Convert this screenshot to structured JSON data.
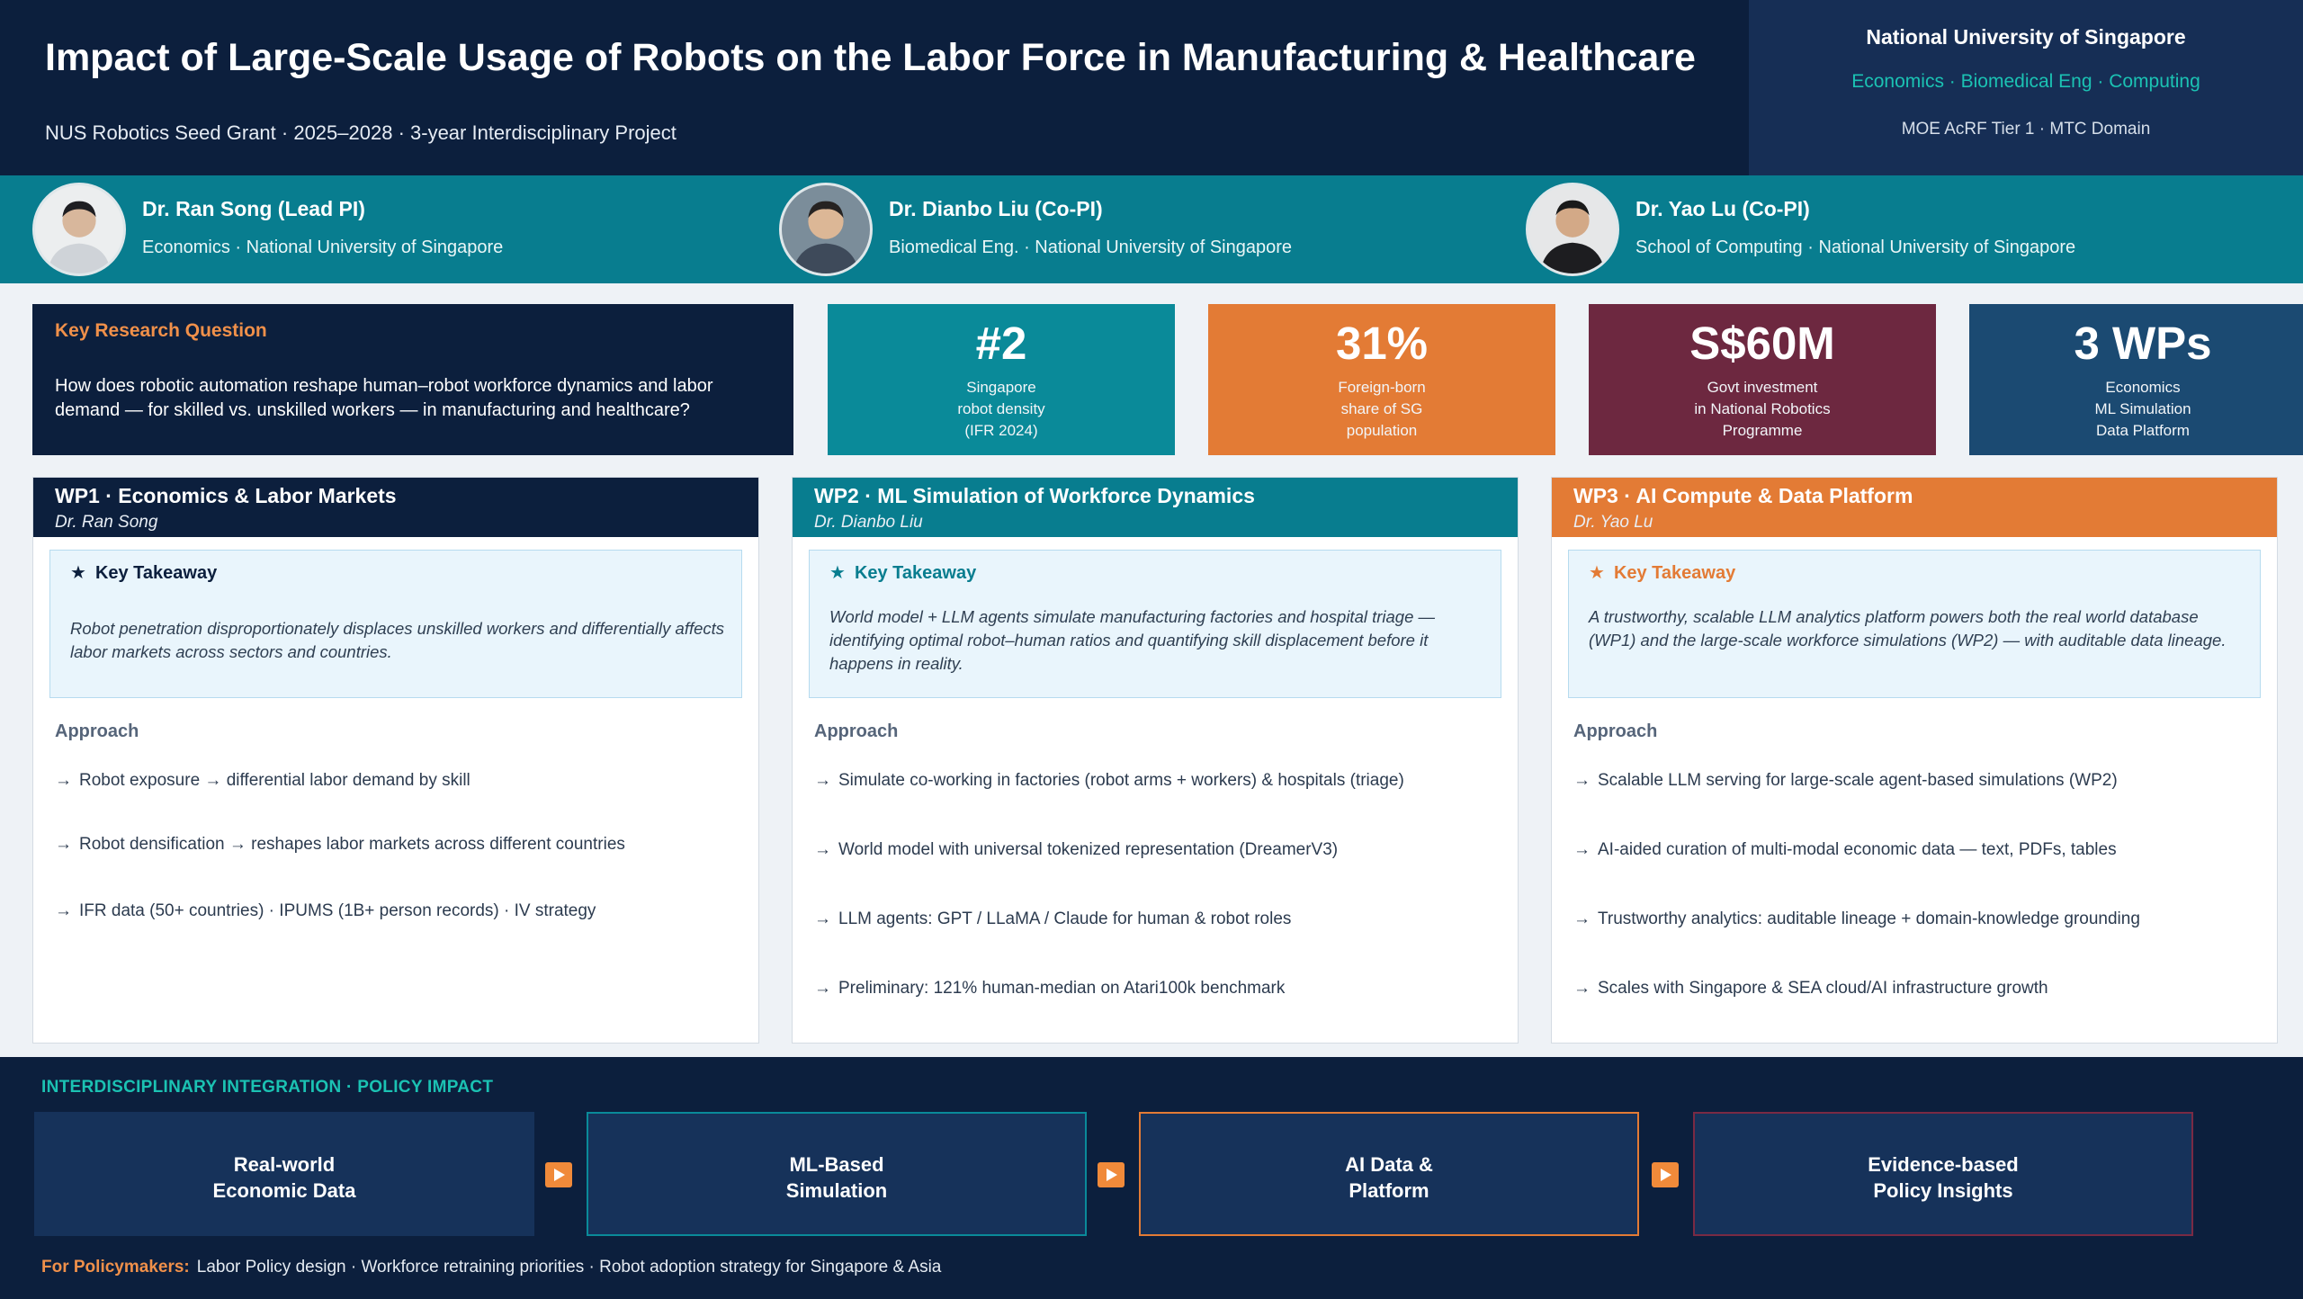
{
  "header": {
    "title": "Impact of Large-Scale Usage of Robots on the Labor Force in Manufacturing & Healthcare",
    "subtitle": "NUS Robotics Seed Grant · 2025–2028 · 3-year Interdisciplinary Project",
    "institution": "National University of Singapore",
    "departments": "Economics · Biomedical Eng · Computing",
    "grant": "MOE AcRF Tier 1 · MTC Domain"
  },
  "team": [
    {
      "name": "Dr. Ran Song (Lead PI)",
      "affiliation": "Economics · National University of Singapore"
    },
    {
      "name": "Dr. Dianbo Liu (Co-PI)",
      "affiliation": "Biomedical Eng. · National University of Singapore"
    },
    {
      "name": "Dr. Yao Lu (Co-PI)",
      "affiliation": "School of Computing · National University of Singapore"
    }
  ],
  "research_question": {
    "label": "Key Research Question",
    "text": "How does robotic automation reshape human–robot workforce dynamics and labor demand — for skilled vs. unskilled workers — in manufacturing and healthcare?"
  },
  "stats": [
    {
      "value": "#2",
      "label": "Singapore\nrobot density\n(IFR 2024)",
      "color": "#0a8a99"
    },
    {
      "value": "31%",
      "label": "Foreign-born\nshare of SG\npopulation",
      "color": "#e37b35"
    },
    {
      "value": "S$60M",
      "label": "Govt investment\nin National Robotics\nProgramme",
      "color": "#6d2840"
    },
    {
      "value": "3 WPs",
      "label": "Economics\nML Simulation\nData Platform",
      "color": "#1b4a72"
    }
  ],
  "work_packages": [
    {
      "title": "WP1  ·  Economics & Labor Markets",
      "lead": "Dr. Ran Song",
      "color": "#0c1f3d",
      "accent": "#0c1f3d",
      "takeaway_label": "Key Takeaway",
      "takeaway": "Robot penetration disproportionately displaces unskilled workers and differentially affects labor markets across sectors and countries.",
      "approach_label": "Approach",
      "approach": [
        "Robot exposure → differential labor demand by skill",
        "Robot densification → reshapes labor markets across different countries",
        "IFR data (50+ countries) · IPUMS (1B+ person records) · IV strategy"
      ]
    },
    {
      "title": "WP2  ·  ML Simulation of Workforce Dynamics",
      "lead": "Dr. Dianbo Liu",
      "color": "#087d8f",
      "accent": "#087d8f",
      "takeaway_label": "Key Takeaway",
      "takeaway": "World model + LLM agents simulate manufacturing factories and hospital triage — identifying optimal robot–human ratios and quantifying skill displacement before it happens in reality.",
      "approach_label": "Approach",
      "approach": [
        "Simulate co-working in factories (robot arms + workers) & hospitals (triage)",
        "World model with universal tokenized representation (DreamerV3)",
        "LLM agents: GPT / LLaMA / Claude for human & robot roles",
        "Preliminary: 121% human-median on Atari100k benchmark"
      ]
    },
    {
      "title": "WP3  ·  AI Compute & Data Platform",
      "lead": "Dr. Yao Lu",
      "color": "#e37b35",
      "accent": "#e37b35",
      "takeaway_label": "Key Takeaway",
      "takeaway": "A trustworthy, scalable LLM analytics platform powers both the real world database (WP1) and the large-scale workforce simulations (WP2) — with auditable data lineage.",
      "approach_label": "Approach",
      "approach": [
        "Scalable LLM serving for large-scale agent-based simulations (WP2)",
        "AI-aided curation of multi-modal economic data — text, PDFs, tables",
        "Trustworthy analytics: auditable lineage + domain-knowledge grounding",
        "Scales with Singapore & SEA cloud/AI infrastructure growth"
      ]
    }
  ],
  "integration": {
    "label": "INTERDISCIPLINARY INTEGRATION  ·  POLICY IMPACT",
    "flow": [
      {
        "text": "Real-world\nEconomic Data",
        "border": "#16325a"
      },
      {
        "text": "ML-Based\nSimulation",
        "border": "#0a8a99"
      },
      {
        "text": "AI Data &\nPlatform",
        "border": "#e37b35"
      },
      {
        "text": "Evidence-based\nPolicy Insights",
        "border": "#7a2a44"
      }
    ],
    "policy_label": "For Policymakers:",
    "policy_text": "Labor Policy design · Workforce retraining priorities · Robot adoption strategy for Singapore & Asia"
  },
  "icons": {
    "star": "★",
    "arrow": "→",
    "flow_arrow": "play-arrow-icon"
  }
}
